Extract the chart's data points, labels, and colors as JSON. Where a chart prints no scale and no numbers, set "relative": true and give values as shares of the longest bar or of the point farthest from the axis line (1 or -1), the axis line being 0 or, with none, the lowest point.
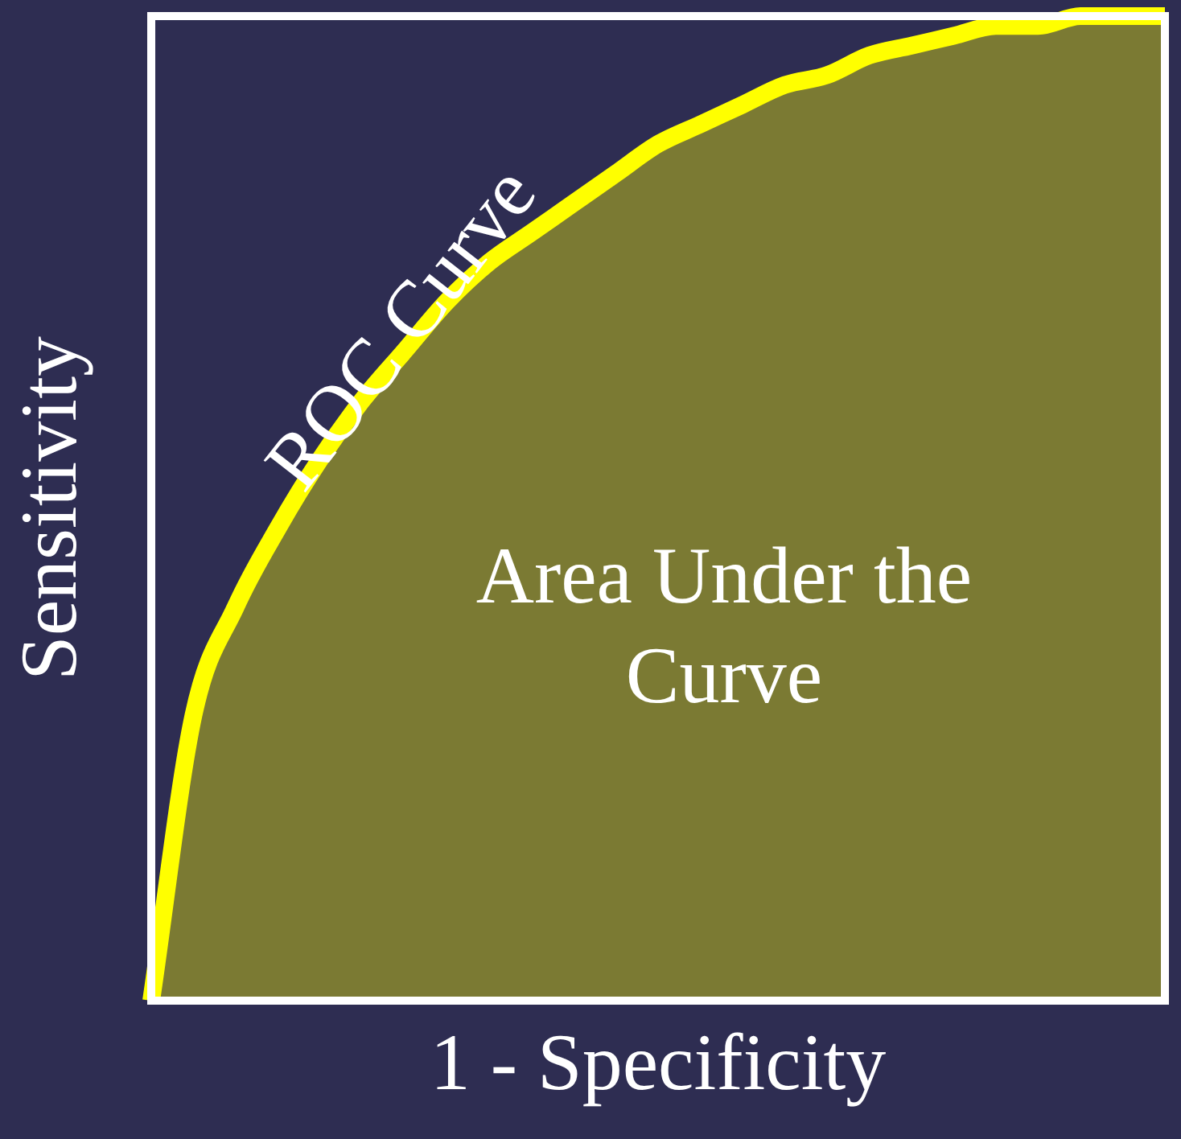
{
  "chart_data": {
    "type": "area",
    "relative": true,
    "xlabel": "1 - Specificity",
    "ylabel": "Sensitivity",
    "categories": [
      null,
      null,
      null,
      null,
      null,
      null,
      null,
      null,
      null,
      null,
      null,
      null,
      null,
      null,
      null,
      null,
      null,
      null,
      null,
      null,
      null,
      null,
      null,
      null,
      null
    ],
    "series": [
      {
        "color": "#ffff00",
        "values": [
          0,
          0.29,
          0.4,
          0.48,
          0.55,
          0.61,
          0.66,
          0.71,
          0.75,
          0.78,
          0.81,
          0.84,
          0.87,
          0.89,
          0.91,
          0.93,
          0.94,
          0.96,
          0.97,
          0.98,
          0.99,
          0.99,
          1,
          1,
          1
        ]
      }
    ],
    "annotations": [
      "ROC Curve",
      "Area Under the Curve"
    ],
    "grid": false,
    "legend": false,
    "marker": "none"
  }
}
